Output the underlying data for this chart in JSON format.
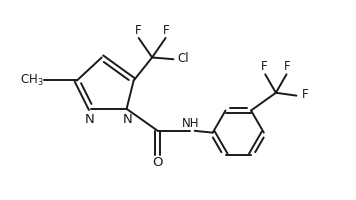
{
  "background_color": "#ffffff",
  "line_color": "#1a1a1a",
  "line_width": 1.4,
  "font_size": 8.5,
  "fig_width": 3.56,
  "fig_height": 2.0,
  "dpi": 100,
  "xlim": [
    0,
    10
  ],
  "ylim": [
    0,
    5.6
  ]
}
